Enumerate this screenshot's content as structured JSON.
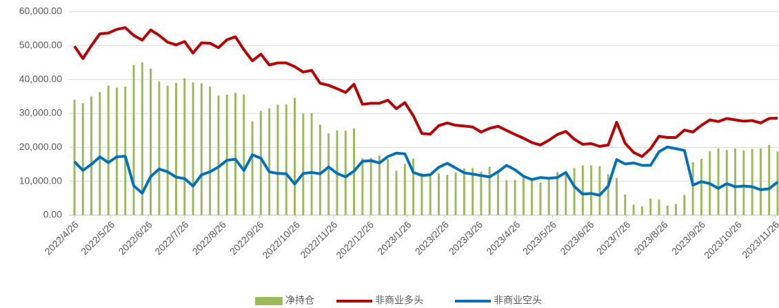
{
  "chart_data": {
    "type": "bar_line",
    "x": [
      "2022/4/26",
      "2022/5/3",
      "2022/5/10",
      "2022/5/17",
      "2022/5/24",
      "2022/5/31",
      "2022/6/7",
      "2022/6/14",
      "2022/6/21",
      "2022/6/28",
      "2022/7/5",
      "2022/7/12",
      "2022/7/19",
      "2022/7/26",
      "2022/8/2",
      "2022/8/9",
      "2022/8/16",
      "2022/8/23",
      "2022/8/30",
      "2022/9/6",
      "2022/9/13",
      "2022/9/20",
      "2022/9/27",
      "2022/10/4",
      "2022/10/11",
      "2022/10/18",
      "2022/10/25",
      "2022/11/1",
      "2022/11/8",
      "2022/11/15",
      "2022/11/22",
      "2022/11/29",
      "2022/12/6",
      "2022/12/13",
      "2022/12/20",
      "2022/12/27",
      "2023/1/3",
      "2023/1/10",
      "2023/1/17",
      "2023/1/24",
      "2023/1/31",
      "2023/2/7",
      "2023/2/14",
      "2023/2/21",
      "2023/2/28",
      "2023/3/7",
      "2023/3/14",
      "2023/3/21",
      "2023/3/28",
      "2023/4/4",
      "2023/4/11",
      "2023/4/18",
      "2023/4/25",
      "2023/5/2",
      "2023/5/9",
      "2023/5/16",
      "2023/5/23",
      "2023/5/30",
      "2023/6/6",
      "2023/6/13",
      "2023/6/20",
      "2023/6/27",
      "2023/7/4",
      "2023/7/11",
      "2023/7/18",
      "2023/7/25",
      "2023/8/1",
      "2023/8/8",
      "2023/8/15",
      "2023/8/22",
      "2023/8/29",
      "2023/9/5",
      "2023/9/12",
      "2023/9/19",
      "2023/9/26",
      "2023/10/3",
      "2023/10/10",
      "2023/10/17",
      "2023/10/24",
      "2023/10/31",
      "2023/11/7",
      "2023/11/14",
      "2023/11/21",
      "2023/11/28"
    ],
    "series": [
      {
        "name": "净持仓",
        "kind": "bar",
        "color": "#9bbb59",
        "values": [
          34000,
          33000,
          35000,
          36300,
          38200,
          37600,
          37900,
          44300,
          45100,
          43200,
          39400,
          38200,
          39000,
          40400,
          39200,
          38900,
          37900,
          35200,
          35500,
          36100,
          35600,
          27700,
          30700,
          31500,
          32600,
          32700,
          34600,
          29900,
          30100,
          26700,
          24100,
          25000,
          24900,
          25600,
          16800,
          16900,
          17600,
          16600,
          13100,
          15100,
          16700,
          12400,
          12000,
          12300,
          11900,
          12600,
          13800,
          13900,
          12800,
          14300,
          13400,
          10300,
          10400,
          11200,
          10900,
          9600,
          11200,
          12700,
          12100,
          13900,
          14700,
          14700,
          14400,
          12100,
          11000,
          6100,
          3100,
          2600,
          4900,
          4600,
          2800,
          3300,
          6000,
          15600,
          16600,
          18800,
          19700,
          19200,
          19700,
          19100,
          19500,
          19700,
          20700,
          18800
        ]
      },
      {
        "name": "非商业多头",
        "kind": "line",
        "color": "#c00000",
        "values": [
          49800,
          46200,
          50000,
          53500,
          53700,
          54800,
          55300,
          53000,
          51600,
          54600,
          53000,
          51000,
          50200,
          51200,
          47800,
          50800,
          50700,
          49400,
          51700,
          52600,
          48800,
          45500,
          47500,
          44300,
          44900,
          44900,
          43800,
          42200,
          42700,
          38900,
          38300,
          37300,
          36200,
          38600,
          32700,
          33000,
          33000,
          33900,
          31400,
          33200,
          29300,
          24100,
          23900,
          26400,
          27200,
          26500,
          26300,
          26000,
          24500,
          25600,
          26200,
          25000,
          23800,
          22700,
          21400,
          20700,
          22100,
          23800,
          24700,
          22400,
          20900,
          21100,
          20300,
          20700,
          27400,
          21200,
          18500,
          17300,
          19600,
          23300,
          22900,
          22900,
          25100,
          24500,
          26500,
          28100,
          27600,
          28500,
          28100,
          27700,
          27900,
          27200,
          28500,
          28600
        ]
      },
      {
        "name": "非商业空头",
        "kind": "line",
        "color": "#0070c0",
        "values": [
          15800,
          13200,
          15000,
          17200,
          15500,
          17200,
          17400,
          8700,
          6500,
          11400,
          13600,
          12800,
          11200,
          10800,
          8600,
          11900,
          12800,
          14200,
          16200,
          16500,
          13200,
          17800,
          16800,
          12800,
          12300,
          12200,
          9200,
          12300,
          12600,
          12200,
          14200,
          12300,
          11300,
          13000,
          15900,
          16100,
          15400,
          17300,
          18300,
          18100,
          12600,
          11700,
          11900,
          14100,
          15300,
          13900,
          12500,
          12100,
          11700,
          11300,
          12800,
          14700,
          13400,
          11500,
          10500,
          11100,
          10900,
          11100,
          12600,
          8500,
          6200,
          6400,
          5900,
          8600,
          16400,
          15100,
          15400,
          14700,
          14700,
          18700,
          20100,
          19600,
          19100,
          8900,
          9900,
          9300,
          7900,
          9300,
          8400,
          8600,
          8400,
          7500,
          7800,
          9800
        ]
      }
    ],
    "ylim": [
      0,
      60000
    ],
    "yticks": [
      {
        "value": 0,
        "label": "0.00"
      },
      {
        "value": 10000,
        "label": "10,000.00"
      },
      {
        "value": 20000,
        "label": "20,000.00"
      },
      {
        "value": 30000,
        "label": "30,000.00"
      },
      {
        "value": 40000,
        "label": "40,000.00"
      },
      {
        "value": 50000,
        "label": "50,000.00"
      },
      {
        "value": 60000,
        "label": "60,000.00"
      }
    ],
    "xticks": [
      "2022/4/26",
      "2022/5/26",
      "2022/6/26",
      "2022/7/26",
      "2022/8/26",
      "2022/9/26",
      "2022/10/26",
      "2022/11/26",
      "2022/12/26",
      "2023/1/26",
      "2023/2/26",
      "2023/3/26",
      "2023/4/26",
      "2023/5/26",
      "2023/6/26",
      "2023/7/26",
      "2023/8/26",
      "2023/9/26",
      "2023/10/26",
      "2023/11/26"
    ],
    "grid": true,
    "legend": "bottom"
  }
}
